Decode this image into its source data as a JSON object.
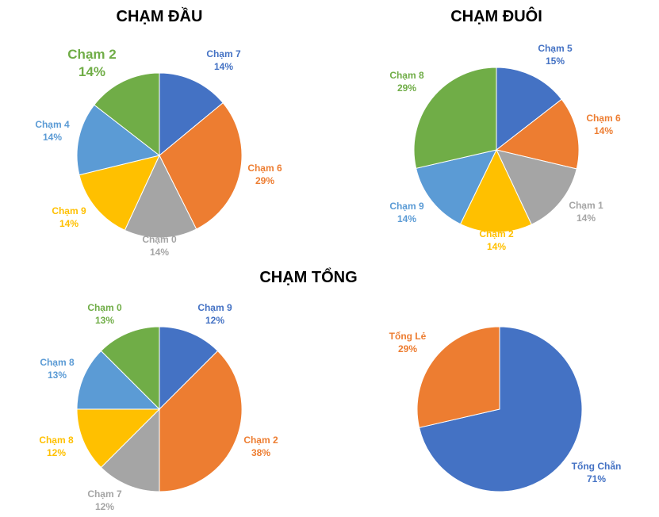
{
  "chart_data": [
    {
      "type": "pie",
      "title": "CHẠM ĐẦU",
      "slices": [
        {
          "label": "Chạm 7",
          "pct_label": "14%",
          "value": 14.0,
          "color": "#4472C4"
        },
        {
          "label": "Chạm 6",
          "pct_label": "29%",
          "value": 28.6,
          "color": "#ED7D31"
        },
        {
          "label": "Chạm 0",
          "pct_label": "14%",
          "value": 14.3,
          "color": "#A5A5A5"
        },
        {
          "label": "Chạm 9",
          "pct_label": "14%",
          "value": 14.3,
          "color": "#FFC000"
        },
        {
          "label": "Chạm 4",
          "pct_label": "14%",
          "value": 14.3,
          "color": "#5B9BD5"
        },
        {
          "label": "Chạm 2",
          "pct_label": "14%",
          "value": 14.5,
          "color": "#70AD47"
        }
      ]
    },
    {
      "type": "pie",
      "title": "CHẠM ĐUÔI",
      "slices": [
        {
          "label": "Chạm 5",
          "pct_label": "15%",
          "value": 14.5,
          "color": "#4472C4"
        },
        {
          "label": "Chạm 6",
          "pct_label": "14%",
          "value": 14.2,
          "color": "#ED7D31"
        },
        {
          "label": "Chạm 1",
          "pct_label": "14%",
          "value": 14.3,
          "color": "#A5A5A5"
        },
        {
          "label": "Chạm 2",
          "pct_label": "14%",
          "value": 14.2,
          "color": "#FFC000"
        },
        {
          "label": "Chạm 9",
          "pct_label": "14%",
          "value": 14.2,
          "color": "#5B9BD5"
        },
        {
          "label": "Chạm 8",
          "pct_label": "29%",
          "value": 28.6,
          "color": "#70AD47"
        }
      ]
    },
    {
      "type": "pie",
      "title": "CHẠM TỔNG",
      "slices": [
        {
          "label": "Chạm 9",
          "pct_label": "12%",
          "value": 12.5,
          "color": "#4472C4"
        },
        {
          "label": "Chạm 2",
          "pct_label": "38%",
          "value": 37.5,
          "color": "#ED7D31"
        },
        {
          "label": "Chạm 7",
          "pct_label": "12%",
          "value": 12.5,
          "color": "#A5A5A5"
        },
        {
          "label": "Chạm 8",
          "pct_label": "12%",
          "value": 12.5,
          "color": "#FFC000"
        },
        {
          "label": "Chạm 8",
          "pct_label": "13%",
          "value": 12.5,
          "color": "#5B9BD5"
        },
        {
          "label": "Chạm 0",
          "pct_label": "13%",
          "value": 12.5,
          "color": "#70AD47"
        }
      ]
    },
    {
      "type": "pie",
      "title": "",
      "slices": [
        {
          "label": "Tổng Chẵn",
          "pct_label": "71%",
          "value": 71.4,
          "color": "#4472C4"
        },
        {
          "label": "Tổng Lẻ",
          "pct_label": "29%",
          "value": 28.6,
          "color": "#ED7D31"
        }
      ]
    }
  ]
}
